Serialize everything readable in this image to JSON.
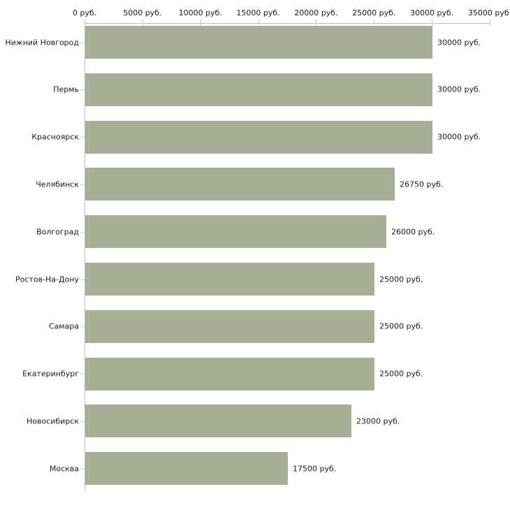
{
  "chart_data": {
    "type": "bar",
    "orientation": "horizontal",
    "title": "",
    "categories": [
      "Нижний Новгород",
      "Пермь",
      "Красноярск",
      "Челябинск",
      "Волгоград",
      "Ростов-На-Дону",
      "Самара",
      "Екатеринбург",
      "Новосибирск",
      "Москва"
    ],
    "values": [
      30000,
      30000,
      30000,
      26750,
      26000,
      25000,
      25000,
      25000,
      23000,
      17500
    ],
    "value_labels": [
      "30000 руб.",
      "30000 руб.",
      "30000 руб.",
      "26750 руб.",
      "26000 руб.",
      "25000 руб.",
      "25000 руб.",
      "25000 руб.",
      "23000 руб.",
      "17500 руб."
    ],
    "x_axis": {
      "position": "top",
      "min": 0,
      "max": 35000,
      "ticks": [
        0,
        5000,
        10000,
        15000,
        20000,
        25000,
        30000,
        35000
      ],
      "tick_labels": [
        "0 руб.",
        "5000 руб.",
        "10000 руб.",
        "15000 руб.",
        "20000 руб.",
        "25000 руб.",
        "30000 руб.",
        "35000 руб."
      ]
    },
    "grid": false,
    "legend": false,
    "colors": {
      "bar": "#a9af97",
      "axis_line": "#c0c0c0",
      "tick": "#cfcfac",
      "text": "#1a1a1a",
      "background": "#ffffff"
    }
  }
}
